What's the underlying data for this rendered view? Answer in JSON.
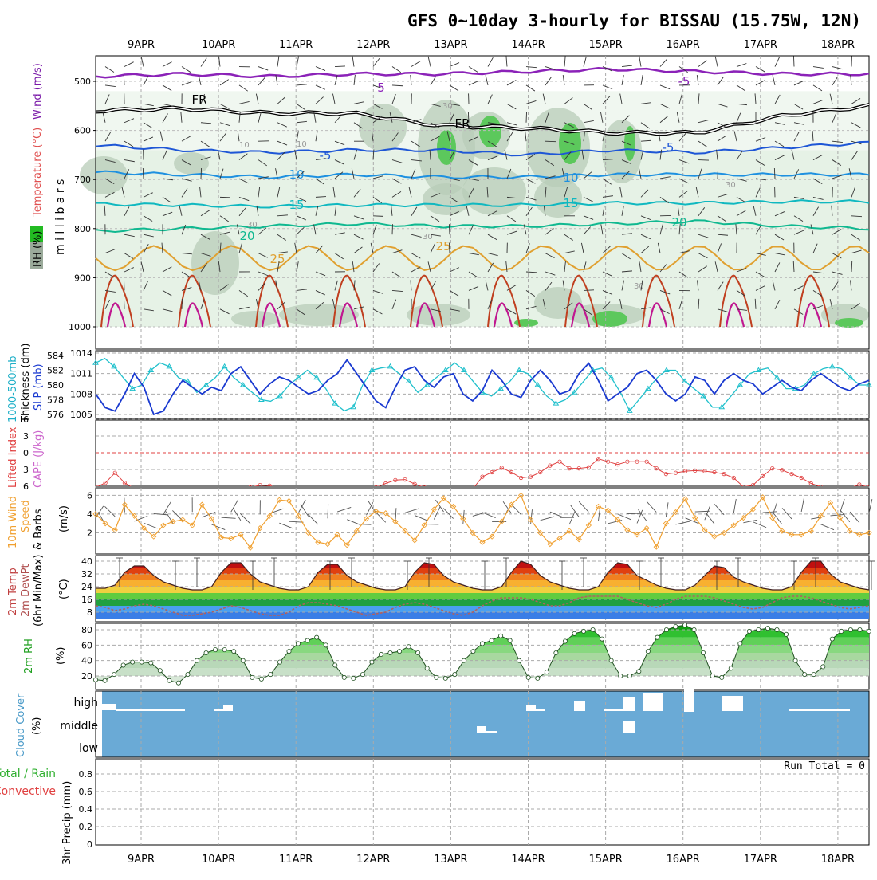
{
  "title": "GFS 0~10day 3-hourly for BISSAU (15.75W, 12N)",
  "date_labels": [
    "9APR",
    "10APR",
    "11APR",
    "12APR",
    "13APR",
    "14APR",
    "15APR",
    "16APR",
    "17APR",
    "18APR"
  ],
  "colors": {
    "frame": "#000000",
    "grid": "#aaaaaa",
    "rh_light": "#e6f2e6",
    "rh_mid": "#b8ccb8",
    "rh_green": "#5cc85c",
    "wind_contour": "#8b22b8",
    "freezing": "#000000",
    "t_minus5": "#1e56d6",
    "t10": "#1e90e0",
    "t15": "#10b8c0",
    "t20": "#10b890",
    "t25": "#e0a030",
    "t30": "#c04020",
    "t35": "#c01890",
    "thickness": "#20c0cc",
    "slp": "#1a3ad0",
    "lifted": "#e04040",
    "wind10m": "#f0a030",
    "dewpt": "#b06060",
    "rh2m": "#30c030",
    "cloud": "#6aaad6",
    "cloud_white": "#ffffff"
  },
  "panel_labels": {
    "upper_rh": "RH (%)",
    "upper_temp": "Temperature (°C)",
    "upper_wind": "Wind (m/s)",
    "upper_y": "m i l l i b a r s",
    "thick_a": "1000-500mb",
    "thick_b": "Thickness (dm)",
    "slp": "SLP (mb)",
    "li": "Lifted Index",
    "cape": "CAPE (J/kg)",
    "wind_a": "10m Wind",
    "wind_b": "Speed",
    "wind_c": "& Barbs",
    "wind_unit": "(m/s)",
    "temp_a": "2m Temp",
    "temp_b": "2m DewPt",
    "temp_c": "(6hr Min/Max)",
    "temp_unit": "(°C)",
    "rh_a": "2m RH",
    "rh_unit": "(%)",
    "cloud_a": "Cloud Cover",
    "cloud_unit": "(%)",
    "cloud_high": "high",
    "cloud_middle": "middle",
    "cloud_low": "low",
    "precip_a": "Total / Rain",
    "precip_b": "Convective",
    "precip_c": "3hr Precip (mm)",
    "run_total": "Run Total = 0"
  },
  "contour_labels": {
    "fr": "FR",
    "m5": "-5",
    "p5": "5",
    "t10": "10",
    "t15": "15",
    "t20": "20",
    "t25": "25",
    "rh30": "30",
    "rh10": "10"
  },
  "chart_data": [
    {
      "type": "line",
      "panel": "upper-air",
      "ylabel": "millibars",
      "ylim": [
        1000,
        450
      ],
      "yticks": [
        500,
        600,
        700,
        800,
        900,
        1000
      ],
      "x": [
        "9APR",
        "10APR",
        "11APR",
        "12APR",
        "13APR",
        "14APR",
        "15APR",
        "16APR",
        "17APR",
        "18APR"
      ],
      "series": [
        {
          "name": "FR",
          "values": [
            560,
            555,
            565,
            565,
            590,
            595,
            605,
            605,
            570,
            550
          ]
        },
        {
          "name": "-5",
          "values": [
            630,
            640,
            645,
            640,
            640,
            650,
            640,
            645,
            635,
            625
          ]
        },
        {
          "name": "10",
          "values": [
            685,
            690,
            695,
            690,
            695,
            695,
            690,
            690,
            690,
            690
          ]
        },
        {
          "name": "15",
          "values": [
            750,
            752,
            755,
            752,
            752,
            752,
            748,
            748,
            745,
            745
          ]
        },
        {
          "name": "20",
          "values": [
            805,
            800,
            795,
            790,
            795,
            795,
            790,
            785,
            795,
            800
          ]
        },
        {
          "name": "5",
          "values": [
            490,
            485,
            490,
            485,
            485,
            480,
            475,
            480,
            485,
            485
          ]
        }
      ]
    },
    {
      "type": "line",
      "panel": "thickness-slp",
      "ylim_left": [
        575,
        585
      ],
      "yticks_left": [
        576,
        578,
        580,
        582,
        584
      ],
      "ylim_right": [
        1004,
        1014
      ],
      "yticks_right": [
        1005,
        1008,
        1011,
        1014
      ],
      "series": [
        {
          "name": "thickness",
          "values": [
            583,
            583.6,
            582.5,
            581,
            579.5,
            580,
            582,
            583,
            582.5,
            581,
            580.5,
            579,
            580,
            581,
            582.5,
            581,
            580,
            579,
            578,
            577.8,
            578.5,
            580,
            581,
            582,
            581,
            579.5,
            577.5,
            576.5,
            577,
            580,
            582,
            582.3,
            582.5,
            581.5,
            580.5,
            579,
            580,
            581,
            582,
            583,
            582,
            580.5,
            579,
            578.5,
            579.5,
            580.5,
            582,
            581.5,
            580,
            578.5,
            577.5,
            578,
            579,
            580.5,
            582,
            582.3,
            581,
            579,
            576.5,
            578,
            579.5,
            581,
            582,
            582,
            580.5,
            579.5,
            578.5,
            577,
            577,
            578.5,
            580,
            581.5,
            582,
            582.3,
            581,
            579.5,
            579.5,
            580,
            581.5,
            582.2,
            582.5,
            582.2,
            581,
            580,
            580
          ]
        },
        {
          "name": "SLP",
          "values": [
            1008,
            1006,
            1005.5,
            1008,
            1011,
            1009,
            1005,
            1005.5,
            1008,
            1010,
            1009,
            1008,
            1009,
            1008.5,
            1011,
            1012,
            1010,
            1008,
            1009.5,
            1010.5,
            1010,
            1009,
            1008,
            1008.5,
            1010,
            1011,
            1013,
            1011,
            1009,
            1007,
            1006,
            1009,
            1011.5,
            1012,
            1010,
            1009,
            1010.5,
            1011,
            1008,
            1007,
            1008.5,
            1011.5,
            1010,
            1008,
            1007.5,
            1010,
            1011.5,
            1010,
            1008,
            1008.5,
            1011,
            1012.5,
            1010,
            1007,
            1008,
            1009,
            1011,
            1011.5,
            1010,
            1008,
            1007,
            1008,
            1010.5,
            1010,
            1008,
            1010,
            1011,
            1010,
            1009.5,
            1008,
            1009,
            1010,
            1009,
            1008.5,
            1010,
            1011,
            1010,
            1009,
            1008.5,
            1009.5,
            1010
          ]
        }
      ]
    },
    {
      "type": "line",
      "panel": "lifted-index",
      "ylim": [
        6,
        -6
      ],
      "yticks": [
        6,
        3,
        0,
        -3,
        -6
      ],
      "series": [
        {
          "name": "Lifted Index",
          "values": [
            6.2,
            5.4,
            3.6,
            5.4,
            6.4,
            6.6,
            6.6,
            6.6,
            6.6,
            6.4,
            6.4,
            6.6,
            6.6,
            6.6,
            6.5,
            6.6,
            6.2,
            5.8,
            5.9,
            6.5,
            6.5,
            6.5,
            6.5,
            6.5,
            6.5,
            6.5,
            6.5,
            6.3,
            6.6,
            6.2,
            5.5,
            4.9,
            4.8,
            5.6,
            6.2,
            6.5,
            6.5,
            6.5,
            6.5,
            6.5,
            4.3,
            3.5,
            2.7,
            3.5,
            4.5,
            4.3,
            3.5,
            2.3,
            1.6,
            2.8,
            2.8,
            2.6,
            1.1,
            1.6,
            2.1,
            1.6,
            1.6,
            1.6,
            2.8,
            3.8,
            3.6,
            3.3,
            3.2,
            3.3,
            3.5,
            3.8,
            4.5,
            6.1,
            5.8,
            4.2,
            2.8,
            3.1,
            3.8,
            4.5,
            5.5,
            6.1,
            6.3,
            6.5,
            6.3,
            5.7,
            6.2
          ]
        }
      ]
    },
    {
      "type": "line",
      "panel": "10m-wind",
      "ylim": [
        0,
        6.5
      ],
      "yticks": [
        2,
        4,
        6
      ],
      "series": [
        {
          "name": "Speed",
          "values": [
            4,
            3,
            2.3,
            5,
            3.8,
            2.5,
            1.6,
            2.8,
            3.2,
            3.4,
            2.8,
            5,
            3.5,
            1.5,
            1.4,
            1.8,
            0.4,
            2.5,
            3.8,
            5.5,
            5.4,
            3.8,
            2,
            1,
            0.8,
            1.8,
            0.7,
            2.2,
            3.5,
            4.3,
            4.1,
            3.2,
            2.2,
            1.2,
            2.8,
            4.5,
            5.7,
            4.8,
            3.5,
            2,
            1,
            1.6,
            3.2,
            5,
            6,
            3.4,
            2,
            0.8,
            1.4,
            2.2,
            1.3,
            2.8,
            4.8,
            4.4,
            3.4,
            2.3,
            1.8,
            2.5,
            0.5,
            3,
            4.2,
            5.6,
            3.6,
            2.3,
            1.6,
            2,
            2.8,
            3.6,
            4.5,
            5.8,
            3.6,
            2.2,
            1.8,
            1.8,
            2.2,
            3.8,
            5.2,
            3.6,
            2.2,
            1.8,
            2
          ]
        }
      ]
    },
    {
      "type": "area",
      "panel": "2m-temp-dewpt",
      "ylim": [
        4,
        42
      ],
      "yticks": [
        8,
        16,
        24,
        32,
        40
      ],
      "series": [
        {
          "name": "2m Temp",
          "values": [
            23,
            23,
            25,
            33,
            37,
            37,
            31,
            27,
            25,
            23,
            22,
            22,
            24,
            33,
            39,
            39,
            32,
            27,
            25,
            23,
            22,
            22,
            24,
            33,
            38,
            38,
            31,
            27,
            25,
            23,
            22,
            22,
            24,
            33,
            39,
            38,
            31,
            27,
            25,
            23,
            22,
            22,
            24,
            33,
            40,
            38,
            31,
            27,
            25,
            23,
            22,
            22,
            24,
            33,
            39,
            38,
            31,
            28,
            25,
            23,
            22,
            22,
            25,
            31,
            37,
            36,
            30,
            27,
            25,
            23,
            22,
            22,
            24,
            33,
            40,
            40,
            32,
            27,
            25,
            23,
            22
          ]
        },
        {
          "name": "2m DewPt",
          "values": [
            12,
            11,
            9,
            10,
            12,
            13,
            12,
            10,
            8,
            6,
            6,
            7,
            8,
            10,
            12,
            11,
            9,
            7,
            6,
            6,
            8,
            12,
            14,
            14,
            13,
            12,
            10,
            8,
            6,
            7,
            8,
            11,
            13,
            14,
            13,
            11,
            9,
            7,
            6,
            8,
            12,
            15,
            17,
            17,
            17,
            16,
            14,
            12,
            12,
            14,
            17,
            18,
            18,
            18,
            18,
            16,
            14,
            12,
            11,
            13,
            16,
            18,
            18,
            18,
            17,
            15,
            13,
            11,
            10,
            11,
            14,
            17,
            18,
            18,
            17,
            15,
            13,
            11,
            10,
            11,
            12
          ]
        }
      ]
    },
    {
      "type": "area",
      "panel": "2m-rh",
      "ylim": [
        10,
        92
      ],
      "yticks": [
        20,
        40,
        60,
        80
      ],
      "series": [
        {
          "name": "2m RH",
          "values": [
            15,
            14,
            22,
            34,
            38,
            38,
            37,
            27,
            14,
            11,
            22,
            40,
            50,
            54,
            54,
            52,
            40,
            18,
            16,
            22,
            38,
            52,
            62,
            66,
            70,
            60,
            34,
            18,
            17,
            22,
            38,
            48,
            50,
            52,
            58,
            50,
            30,
            18,
            17,
            22,
            40,
            52,
            62,
            66,
            72,
            66,
            40,
            18,
            17,
            25,
            50,
            65,
            75,
            78,
            80,
            68,
            40,
            20,
            20,
            26,
            52,
            70,
            80,
            84,
            86,
            80,
            50,
            20,
            18,
            30,
            62,
            78,
            80,
            82,
            80,
            74,
            40,
            22,
            22,
            32,
            68,
            78,
            80,
            80,
            78
          ]
        }
      ]
    },
    {
      "type": "bar",
      "panel": "cloud-cover",
      "categories": [
        "low",
        "middle",
        "high"
      ],
      "note": "high cloud and middle cloud cover shown as white bars against blue clear sky"
    },
    {
      "type": "bar",
      "panel": "3hr-precip",
      "ylabel": "3hr Precip (mm)",
      "ylim": [
        0,
        1
      ],
      "yticks": [
        0,
        0.2,
        0.4,
        0.6,
        0.8
      ],
      "series": [
        {
          "name": "Total / Rain",
          "values": []
        },
        {
          "name": "Convective",
          "values": []
        }
      ]
    }
  ]
}
